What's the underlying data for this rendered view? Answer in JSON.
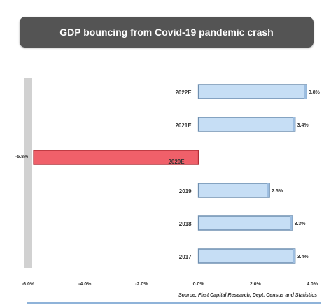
{
  "chart_data": {
    "type": "bar",
    "orientation": "horizontal",
    "title": "GDP bouncing from Covid-19 pandemic crash",
    "categories": [
      "2022E",
      "2021E",
      "2020E",
      "2019",
      "2018",
      "2017"
    ],
    "values": [
      3.8,
      3.4,
      -5.8,
      2.5,
      3.3,
      3.4
    ],
    "data_labels": [
      "3.8%",
      "3.4%",
      "-5.8%",
      "2.5%",
      "3.3%",
      "3.4%"
    ],
    "x_ticks": [
      -6.0,
      -4.0,
      -2.0,
      0.0,
      2.0,
      4.0
    ],
    "x_tick_labels": [
      "-6.0%",
      "-4.0%",
      "-2.0%",
      "0.0%",
      "2.0%",
      "4.0%"
    ],
    "xlim": [
      -6.0,
      4.0
    ],
    "xlabel": "",
    "ylabel": "",
    "grid": false,
    "legend": "none",
    "source": "Source: First Capital Research, Dept. Census and Statistics",
    "colors": {
      "positive_fill": "#c6def5",
      "positive_stroke": "#6f8fb0",
      "negative_fill": "#f0606a",
      "negative_stroke": "#b03038",
      "axis_band": "#c9c9c9",
      "title_bg": "#545454",
      "title_text": "#ffffff"
    }
  }
}
